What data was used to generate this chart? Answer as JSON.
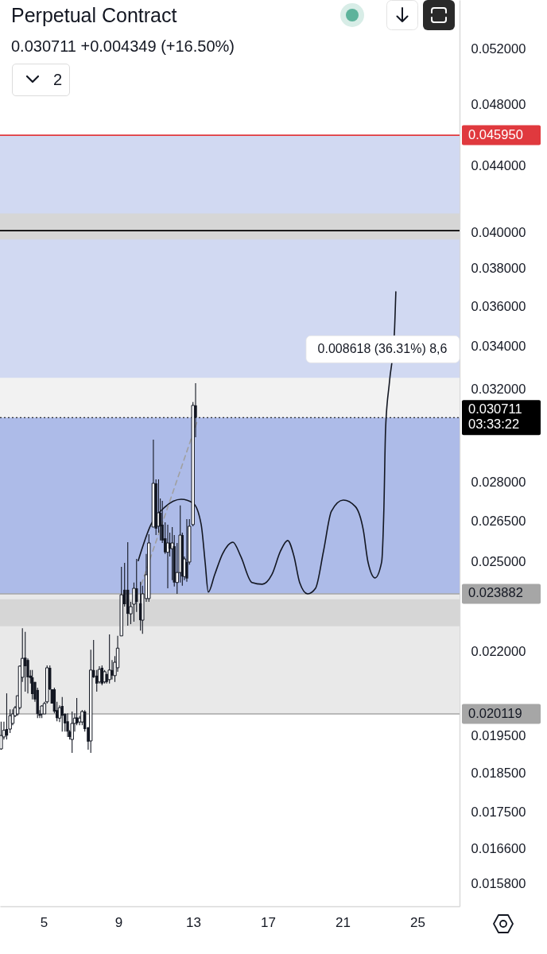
{
  "chart_data": {
    "type": "candlestick",
    "title": "Perpetual Contract",
    "subtitle": "0.030711 +0.004349 (+16.50%)",
    "color": "#131722",
    "x": [
      2.72,
      2.87,
      3.02,
      3.2,
      3.34,
      3.47,
      3.6,
      3.72,
      3.86,
      4.01,
      4.15,
      4.29,
      4.39,
      4.53,
      4.67,
      4.79,
      4.9,
      5.04,
      5.18,
      5.33,
      5.44,
      5.57,
      5.71,
      5.85,
      5.99,
      6.14,
      6.28,
      6.39,
      6.52,
      6.66,
      6.77,
      6.92,
      7.06,
      7.2,
      7.38,
      7.52,
      7.67,
      7.84,
      7.98,
      8.12,
      8.26,
      8.37,
      8.52,
      8.66,
      8.81,
      8.96,
      9.16,
      9.33,
      9.5,
      9.66,
      9.83,
      9.97,
      10.18,
      10.29,
      10.49,
      10.63,
      10.87,
      11.01,
      11.15,
      11.24,
      11.35,
      11.5,
      11.64,
      11.75,
      11.88,
      11.99,
      12.14,
      12.31,
      12.42,
      12.53,
      12.66,
      12.8,
      12.99,
      13.13
    ],
    "ohlc": [
      [
        0.01914,
        0.0199,
        0.01912,
        0.01951
      ],
      [
        0.01947,
        0.0199,
        0.0194,
        0.01966
      ],
      [
        0.01969,
        0.02072,
        0.0194,
        0.01951
      ],
      [
        0.01969,
        0.02025,
        0.01958,
        0.02007
      ],
      [
        0.01985,
        0.02025,
        0.0198,
        0.02012
      ],
      [
        0.02007,
        0.02035,
        0.02003,
        0.0203
      ],
      [
        0.02012,
        0.02065,
        0.02007,
        0.02065
      ],
      [
        0.0203,
        0.02156,
        0.02025,
        0.02154
      ],
      [
        0.0212,
        0.02274,
        0.02106,
        0.02178
      ],
      [
        0.0218,
        0.02262,
        0.02077,
        0.02154
      ],
      [
        0.02173,
        0.02178,
        0.02072,
        0.0212
      ],
      [
        0.02125,
        0.02142,
        0.02101,
        0.02118
      ],
      [
        0.0212,
        0.02142,
        0.02054,
        0.0207
      ],
      [
        0.02106,
        0.02106,
        0.02047,
        0.02054
      ],
      [
        0.02082,
        0.02089,
        0.02,
        0.02012
      ],
      [
        0.02012,
        0.02023,
        0.02,
        0.02007
      ],
      [
        0.02012,
        0.02037,
        0.02,
        0.02035
      ],
      [
        0.02012,
        0.02047,
        0.02012,
        0.02042
      ],
      [
        0.02047,
        0.02156,
        0.02042,
        0.02149
      ],
      [
        0.02149,
        0.02156,
        0.02082,
        0.02084
      ],
      [
        0.02084,
        0.02084,
        0.02042,
        0.02042
      ],
      [
        0.02084,
        0.02089,
        0.02014,
        0.02019
      ],
      [
        0.02023,
        0.02047,
        0.01991,
        0.02
      ],
      [
        0.02,
        0.02037,
        0.01989,
        0.0203
      ],
      [
        0.02035,
        0.02061,
        0.01962,
        0.02007
      ],
      [
        0.02012,
        0.02014,
        0.01962,
        0.01985
      ],
      [
        0.01991,
        0.02014,
        0.01947,
        0.01962
      ],
      [
        0.01962,
        0.01966,
        0.0194,
        0.01947
      ],
      [
        0.0194,
        0.02019,
        0.01903,
        0.01985
      ],
      [
        0.01985,
        0.02014,
        0.01962,
        0.02
      ],
      [
        0.02002,
        0.02058,
        0.0198,
        0.01985
      ],
      [
        0.01989,
        0.02007,
        0.0198,
        0.02
      ],
      [
        0.01989,
        0.02023,
        0.0198,
        0.02019
      ],
      [
        0.02019,
        0.02023,
        0.01962,
        0.01969
      ],
      [
        0.01974,
        0.01974,
        0.01912,
        0.01934
      ],
      [
        0.01936,
        0.02205,
        0.01903,
        0.02142
      ],
      [
        0.02142,
        0.02236,
        0.02118,
        0.0212
      ],
      [
        0.02125,
        0.02142,
        0.02077,
        0.02101
      ],
      [
        0.02106,
        0.02154,
        0.02101,
        0.02144
      ],
      [
        0.02149,
        0.02156,
        0.02096,
        0.02101
      ],
      [
        0.02106,
        0.02142,
        0.02101,
        0.02137
      ],
      [
        0.0213,
        0.0213,
        0.02101,
        0.02106
      ],
      [
        0.02113,
        0.02254,
        0.02101,
        0.02142
      ],
      [
        0.02142,
        0.02173,
        0.02113,
        0.02125
      ],
      [
        0.02125,
        0.02185,
        0.02106,
        0.02166
      ],
      [
        0.02149,
        0.02249,
        0.02137,
        0.0221
      ],
      [
        0.02249,
        0.02482,
        0.02249,
        0.02385
      ],
      [
        0.02402,
        0.02496,
        0.02345,
        0.02353
      ],
      [
        0.02402,
        0.02571,
        0.02282,
        0.02321
      ],
      [
        0.02321,
        0.02361,
        0.02287,
        0.02345
      ],
      [
        0.02353,
        0.02427,
        0.02295,
        0.02407
      ],
      [
        0.02407,
        0.0251,
        0.02327,
        0.02361
      ],
      [
        0.02356,
        0.0243,
        0.02266,
        0.023
      ],
      [
        0.023,
        0.02416,
        0.02256,
        0.02388
      ],
      [
        0.02372,
        0.02528,
        0.02361,
        0.02454
      ],
      [
        0.02372,
        0.026,
        0.02361,
        0.02568
      ],
      [
        0.02627,
        0.02976,
        0.02627,
        0.02796
      ],
      [
        0.02796,
        0.02812,
        0.02597,
        0.02621
      ],
      [
        0.0263,
        0.02812,
        0.02606,
        0.02681
      ],
      [
        0.02681,
        0.02736,
        0.02577,
        0.0263
      ],
      [
        0.02636,
        0.02727,
        0.02568,
        0.02577
      ],
      [
        0.02585,
        0.02645,
        0.02528,
        0.02534
      ],
      [
        0.02534,
        0.02636,
        0.02407,
        0.02568
      ],
      [
        0.02568,
        0.02606,
        0.02519,
        0.02547
      ],
      [
        0.02547,
        0.02627,
        0.02435,
        0.02568
      ],
      [
        0.02556,
        0.02597,
        0.02413,
        0.02427
      ],
      [
        0.02427,
        0.02568,
        0.02388,
        0.02462
      ],
      [
        0.02462,
        0.02709,
        0.02427,
        0.02597
      ],
      [
        0.02597,
        0.02606,
        0.02416,
        0.02448
      ],
      [
        0.02448,
        0.02519,
        0.02435,
        0.0251
      ],
      [
        0.02499,
        0.02657,
        0.0243,
        0.02441
      ],
      [
        0.02499,
        0.02657,
        0.0249,
        0.0263
      ],
      [
        0.02636,
        0.0314,
        0.0263,
        0.03125
      ],
      [
        0.03125,
        0.03226,
        0.02986,
        0.030711
      ]
    ],
    "series": [
      {
        "type": "line",
        "color": "#131722",
        "x": [
          10.06,
          10.74,
          11.47,
          12.36,
          13.0,
          13.43,
          13.64,
          13.81,
          14.15,
          14.57,
          15.13,
          15.55,
          16.15,
          16.7,
          17.21,
          17.68,
          18.06,
          18.4,
          18.7,
          19.13,
          19.55,
          19.98,
          20.4,
          21.04,
          21.68,
          22.11,
          22.36,
          22.74,
          23.09,
          23.21,
          23.3,
          23.51,
          23.77,
          23.85
        ],
        "values": [
          0.02504,
          0.02636,
          0.02702,
          0.02733,
          0.02718,
          0.02636,
          0.02499,
          0.02394,
          0.02454,
          0.02528,
          0.02571,
          0.02519,
          0.02427,
          0.02421,
          0.02454,
          0.02539,
          0.02577,
          0.02519,
          0.02427,
          0.02388,
          0.02407,
          0.02539,
          0.02687,
          0.0273,
          0.02705,
          0.02615,
          0.02499,
          0.02443,
          0.02499,
          0.02696,
          0.0302,
          0.03233,
          0.03461,
          0.03675
        ]
      },
      {
        "type": "line",
        "color": "#a0a0a0",
        "line_style": "dashed",
        "x": [
          10.23,
          13.21
        ],
        "values": [
          0.02421,
          0.03054
        ]
      }
    ],
    "xlim": [
      2.66,
      27.26
    ],
    "xticks": [
      5,
      9,
      13,
      17,
      21,
      25
    ],
    "ylim": [
      0.01529,
      0.05573
    ],
    "log": "y",
    "yticks": [
      {
        "value": 0.052,
        "label": "0.052000"
      },
      {
        "value": 0.048,
        "label": "0.048000"
      },
      {
        "value": 0.044,
        "label": "0.044000"
      },
      {
        "value": 0.04,
        "label": "0.040000"
      },
      {
        "value": 0.038,
        "label": "0.038000"
      },
      {
        "value": 0.036,
        "label": "0.036000"
      },
      {
        "value": 0.034,
        "label": "0.034000"
      },
      {
        "value": 0.032,
        "label": "0.032000"
      },
      {
        "value": 0.028,
        "label": "0.028000"
      },
      {
        "value": 0.0265,
        "label": "0.026500"
      },
      {
        "value": 0.025,
        "label": "0.025000"
      },
      {
        "value": 0.022,
        "label": "0.022000"
      },
      {
        "value": 0.0195,
        "label": "0.019500"
      },
      {
        "value": 0.0185,
        "label": "0.018500"
      },
      {
        "value": 0.0175,
        "label": "0.017500"
      },
      {
        "value": 0.0166,
        "label": "0.016600"
      },
      {
        "value": 0.0158,
        "label": "0.015800"
      }
    ],
    "bands": [
      {
        "axis": "y",
        "from": 0.023882,
        "to": 0.04595,
        "color": "#d1d9f2"
      },
      {
        "axis": "y",
        "from": 0.023882,
        "to": 0.0325,
        "color": "#f2f2f2",
        "label": "0.008618 (36.31%) 8,6"
      },
      {
        "axis": "y",
        "from": 0.023882,
        "to": 0.030711,
        "color": "#adbbe8"
      },
      {
        "axis": "y",
        "from": 0.020119,
        "to": 0.023882,
        "color": "#e9e9e9"
      },
      {
        "axis": "y",
        "from": 0.0396,
        "to": 0.0411,
        "color": "#d6d6d6"
      },
      {
        "axis": "y",
        "from": 0.0228,
        "to": 0.0237,
        "color": "#d6d6d6"
      }
    ],
    "ref_lines": [
      {
        "axis": "y",
        "value": 0.04595,
        "label": "0.045950",
        "color": "#e0393e"
      },
      {
        "axis": "y",
        "value": 0.0401,
        "color": "#000000"
      },
      {
        "axis": "y",
        "value": 0.030711,
        "label": "0.030711\n03:33:22",
        "color": "#000000",
        "line_style": "dotted"
      },
      {
        "axis": "y",
        "value": 0.023882,
        "label": "0.023882",
        "color": "#a6a6a6"
      },
      {
        "axis": "y",
        "value": 0.020119,
        "label": "0.020119",
        "color": "#a6a6a6"
      }
    ],
    "annotations": [
      "2"
    ]
  }
}
